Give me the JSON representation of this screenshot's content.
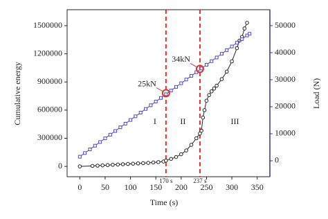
{
  "chart_data": {
    "type": "line",
    "xlabel": "Time (s)",
    "ylabel": "Cumulative energy",
    "y2label": "Load (N)",
    "xlim": [
      -25,
      375
    ],
    "xticks": [
      0,
      50,
      100,
      150,
      200,
      250,
      300,
      350
    ],
    "ylim": [
      -110000,
      1670000
    ],
    "yticks": [
      0,
      300000,
      600000,
      900000,
      1200000,
      1500000
    ],
    "y2lim": [
      -5900,
      55900
    ],
    "y2ticks": [
      0,
      10000,
      20000,
      30000,
      40000,
      50000
    ],
    "y2color": "#33338a",
    "series": [
      {
        "color": "#222222",
        "marker": "circle",
        "x": [
          0,
          25,
          35,
          45,
          55,
          65,
          75,
          85,
          95,
          105,
          115,
          125,
          135,
          145,
          155,
          165,
          170,
          180,
          190,
          200,
          210,
          220,
          230,
          237,
          240,
          243,
          246,
          250,
          255,
          260,
          265,
          270,
          280,
          290,
          300,
          310,
          315,
          320,
          325,
          330
        ],
        "values": [
          0,
          5000,
          8000,
          11000,
          14000,
          17000,
          20000,
          23000,
          26000,
          29000,
          32000,
          35000,
          38000,
          42000,
          46000,
          52000,
          62000,
          80000,
          100000,
          130000,
          170000,
          230000,
          300000,
          350000,
          380000,
          520000,
          600000,
          700000,
          760000,
          800000,
          830000,
          860000,
          930000,
          1010000,
          1120000,
          1260000,
          1340000,
          1380000,
          1470000,
          1530000
        ]
      },
      {
        "color": "#4a4ac0",
        "marker": "square",
        "axis": "y2",
        "x": [
          0,
          10,
          20,
          30,
          40,
          50,
          60,
          70,
          80,
          90,
          100,
          110,
          120,
          130,
          140,
          150,
          160,
          170,
          180,
          190,
          200,
          210,
          220,
          230,
          240,
          250,
          260,
          270,
          280,
          290,
          300,
          310,
          320,
          330,
          335
        ],
        "values": [
          1500,
          2860,
          4220,
          5580,
          6940,
          8300,
          9660,
          11020,
          12380,
          13740,
          15100,
          16460,
          17820,
          19180,
          20540,
          21900,
          23260,
          24620,
          25980,
          27340,
          28700,
          30060,
          31420,
          32780,
          34140,
          35500,
          36860,
          38220,
          39580,
          40940,
          42300,
          43660,
          45020,
          46380,
          47000
        ]
      }
    ],
    "vlines": [
      {
        "x": 170,
        "label": "170 s",
        "color": "#e03030"
      },
      {
        "x": 237,
        "label": "237 s",
        "color": "#e03030"
      }
    ],
    "highlights": [
      {
        "x": 170,
        "y": 25000,
        "label": "25kN"
      },
      {
        "x": 237,
        "y": 34000,
        "label": "34kN"
      }
    ],
    "regions": [
      "I",
      "II",
      "III"
    ]
  }
}
